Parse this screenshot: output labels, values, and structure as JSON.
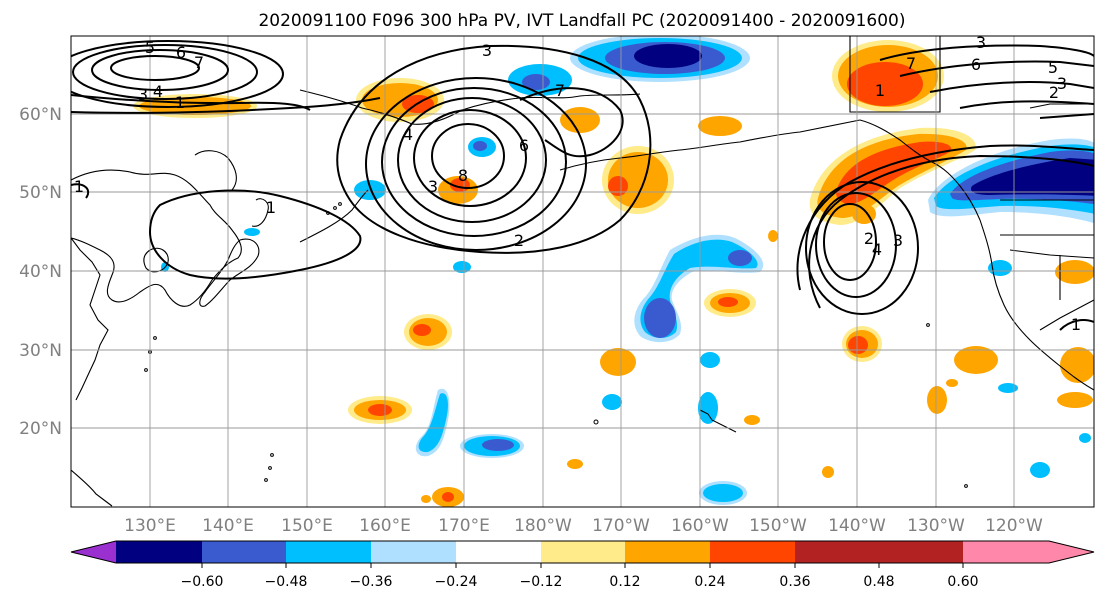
{
  "title": "2020091100 F096 300 hPa PV, IVT Landfall PC (2020091400 - 2020091600)",
  "lat_labels": [
    "20°N",
    "30°N",
    "40°N",
    "50°N",
    "60°N"
  ],
  "lon_labels": [
    "130°E",
    "140°E",
    "150°E",
    "160°E",
    "170°E",
    "180°W",
    "170°W",
    "160°W",
    "150°W",
    "140°W",
    "130°W",
    "120°W"
  ],
  "colorbar": {
    "ticks": [
      "−0.60",
      "−0.48",
      "−0.36",
      "−0.24",
      "−0.12",
      "0.12",
      "0.24",
      "0.36",
      "0.48",
      "0.60"
    ],
    "colors": [
      "#9b30d0",
      "#000080",
      "#3a5bd0",
      "#00bfff",
      "#b0e0ff",
      "#ffffff",
      "#ffeb8a",
      "#ffa500",
      "#ff4500",
      "#b22222",
      "#ff88aa"
    ]
  },
  "contour_labels": [
    "5",
    "6",
    "7",
    "4",
    "3",
    "1",
    "3",
    "8",
    "6",
    "7",
    "4",
    "2",
    "3",
    "1",
    "7",
    "4",
    "1",
    "6",
    "5",
    "3",
    "3",
    "2",
    "4",
    "3",
    "2",
    "1",
    "1"
  ]
}
